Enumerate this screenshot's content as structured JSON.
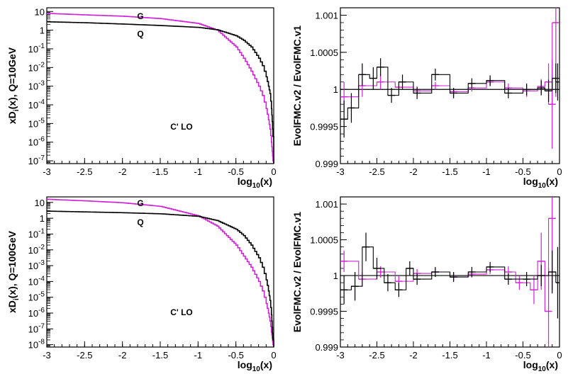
{
  "colors": {
    "series_g": "#d020d8",
    "series_q": "#000000",
    "axis": "#000000",
    "background": "#ffffff"
  },
  "chart_data": [
    {
      "id": "pdf-q10",
      "type": "line",
      "xlabel_main": "log",
      "xlabel_sub": "10",
      "xlabel_tail": "(x)",
      "ylabel_main": "xD",
      "ylabel_sub": "i",
      "ylabel_tail": "(x), Q=10GeV",
      "xlim": [
        -3,
        0
      ],
      "ylim_log10": [
        -7.15,
        1.2
      ],
      "yscale": "log",
      "x_ticks": [
        "-3",
        "-2.5",
        "-2",
        "-1.5",
        "-1",
        "-0.5",
        "0"
      ],
      "y_ticks": [
        "10",
        "1",
        "10-1",
        "10-2",
        "10-3",
        "10-4",
        "10-5",
        "10-6",
        "10-7"
      ],
      "annotation": "C' LO",
      "series_labels": [
        "G",
        "Q"
      ],
      "series": [
        {
          "name": "G",
          "color": "#d020d8",
          "x": [
            -3,
            -2.5,
            -2,
            -1.5,
            -1,
            -0.75,
            -0.5,
            -0.4,
            -0.3,
            -0.2,
            -0.15,
            -0.1,
            -0.07,
            -0.05,
            -0.03,
            -0.02,
            -0.01
          ],
          "log10y": [
            0.9,
            0.82,
            0.75,
            0.62,
            0.36,
            0.0,
            -0.9,
            -1.5,
            -2.2,
            -3.0,
            -3.5,
            -4.2,
            -4.8,
            -5.3,
            -6.0,
            -6.5,
            -7.0
          ]
        },
        {
          "name": "Q",
          "color": "#000000",
          "x": [
            -3,
            -2.5,
            -2,
            -1.5,
            -1,
            -0.75,
            -0.5,
            -0.4,
            -0.3,
            -0.2,
            -0.15,
            -0.1,
            -0.07,
            -0.05,
            -0.03,
            -0.02,
            -0.01
          ],
          "log10y": [
            0.45,
            0.4,
            0.33,
            0.25,
            0.15,
            0.02,
            -0.3,
            -0.55,
            -0.9,
            -1.5,
            -1.9,
            -2.5,
            -3.0,
            -3.4,
            -4.2,
            -4.9,
            -5.7
          ]
        }
      ]
    },
    {
      "id": "ratio-q10",
      "type": "line",
      "xlabel_main": "log",
      "xlabel_sub": "10",
      "xlabel_tail": "(x)",
      "ylabel": "EvolFMC.v2 / EvolFMC.v1",
      "xlim": [
        -3,
        0
      ],
      "ylim": [
        0.999,
        1.0011
      ],
      "x_ticks": [
        "-3",
        "-2.5",
        "-2",
        "-1.5",
        "-1",
        "-0.5",
        "0"
      ],
      "y_ticks": [
        {
          "value": 1.001,
          "label": "1.001"
        },
        {
          "value": 1.0005,
          "label": "1.0005"
        },
        {
          "value": 1.0,
          "label": "1"
        },
        {
          "value": 0.9995,
          "label": "0.9995"
        },
        {
          "value": 0.999,
          "label": "0.999"
        }
      ],
      "reference_line": 1.0,
      "series": [
        {
          "name": "G",
          "color": "#d020d8",
          "x": [
            -3,
            -2.75,
            -2.5,
            -2.25,
            -2,
            -1.75,
            -1.5,
            -1.25,
            -1,
            -0.75,
            -0.5,
            -0.3,
            -0.2,
            -0.15,
            -0.1
          ],
          "y": [
            0.9999,
            1.00005,
            1.0001,
            1.00003,
            0.99998,
            1.00005,
            0.99997,
            1.00002,
            1.0001,
            1.00002,
            0.99998,
            1.00004,
            1.0001,
            0.9998,
            1.0009
          ],
          "err": [
            0.0002,
            0.00015,
            0.0001,
            8e-05,
            6e-05,
            5e-05,
            5e-05,
            5e-05,
            6e-05,
            6e-05,
            8e-05,
            0.0001,
            0.00025,
            0.0006,
            0.001
          ]
        },
        {
          "name": "Q",
          "color": "#000000",
          "x": [
            -3,
            -2.9,
            -2.75,
            -2.6,
            -2.5,
            -2.35,
            -2.2,
            -2,
            -1.75,
            -1.5,
            -1.25,
            -1,
            -0.75,
            -0.5,
            -0.3,
            -0.2,
            -0.1,
            -0.05
          ],
          "y": [
            0.9996,
            0.99975,
            1.0002,
            1.00015,
            1.0003,
            0.99992,
            1.0001,
            0.99995,
            1.0002,
            0.99995,
            1.00008,
            1.00012,
            0.99995,
            1.0,
            1.00002,
            0.99998,
            1.00015,
            1.0001
          ],
          "err": [
            0.00025,
            0.0002,
            0.00015,
            0.00015,
            0.00012,
            0.0001,
            0.0001,
            8e-05,
            8e-05,
            7e-05,
            7e-05,
            7e-05,
            7e-05,
            8e-05,
            0.0001,
            0.00015,
            0.0002,
            0.00025
          ]
        }
      ]
    },
    {
      "id": "pdf-q100",
      "type": "line",
      "xlabel_main": "log",
      "xlabel_sub": "10",
      "xlabel_tail": "(x)",
      "ylabel_main": "xD",
      "ylabel_sub": "i",
      "ylabel_tail": "(x), Q=100GeV",
      "xlim": [
        -3,
        0
      ],
      "ylim_log10": [
        -8.15,
        1.35
      ],
      "yscale": "log",
      "x_ticks": [
        "-3",
        "-2.5",
        "-2",
        "-1.5",
        "-1",
        "-0.5",
        "0"
      ],
      "y_ticks": [
        "10",
        "1",
        "10-1",
        "10-2",
        "10-3",
        "10-4",
        "10-5",
        "10-6",
        "10-7",
        "10-8"
      ],
      "annotation": "C' LO",
      "series_labels": [
        "G",
        "Q"
      ],
      "series": [
        {
          "name": "G",
          "color": "#d020d8",
          "x": [
            -3,
            -2.5,
            -2,
            -1.5,
            -1,
            -0.75,
            -0.5,
            -0.4,
            -0.3,
            -0.2,
            -0.15,
            -0.1,
            -0.07,
            -0.05,
            -0.03,
            -0.02,
            -0.01
          ],
          "log10y": [
            1.2,
            1.1,
            0.98,
            0.75,
            0.15,
            -0.5,
            -1.7,
            -2.4,
            -3.1,
            -4.0,
            -4.6,
            -5.4,
            -6.0,
            -6.5,
            -7.2,
            -7.6,
            -8.0
          ]
        },
        {
          "name": "Q",
          "color": "#000000",
          "x": [
            -3,
            -2.5,
            -2,
            -1.5,
            -1,
            -0.75,
            -0.5,
            -0.4,
            -0.3,
            -0.2,
            -0.15,
            -0.1,
            -0.07,
            -0.05,
            -0.03,
            -0.02,
            -0.01
          ],
          "log10y": [
            0.45,
            0.4,
            0.35,
            0.28,
            0.12,
            -0.15,
            -0.7,
            -1.1,
            -1.7,
            -2.5,
            -3.1,
            -3.9,
            -4.6,
            -5.2,
            -6.1,
            -6.9,
            -7.7
          ]
        }
      ]
    },
    {
      "id": "ratio-q100",
      "type": "line",
      "xlabel_main": "log",
      "xlabel_sub": "10",
      "xlabel_tail": "(x)",
      "ylabel": "EvolFMC.v2 / EvolFMC.v1",
      "xlim": [
        -3,
        0
      ],
      "ylim": [
        0.999,
        1.0011
      ],
      "x_ticks": [
        "-3",
        "-2.5",
        "-2",
        "-1.5",
        "-1",
        "-0.5",
        "0"
      ],
      "y_ticks": [
        {
          "value": 1.001,
          "label": "1.001"
        },
        {
          "value": 1.0005,
          "label": "1.0005"
        },
        {
          "value": 1.0,
          "label": "1"
        },
        {
          "value": 0.9995,
          "label": "0.9995"
        },
        {
          "value": 0.999,
          "label": "0.999"
        }
      ],
      "reference_line": 1.0,
      "series": [
        {
          "name": "G",
          "color": "#d020d8",
          "x": [
            -3,
            -2.75,
            -2.5,
            -2.25,
            -2,
            -1.75,
            -1.5,
            -1.25,
            -1,
            -0.75,
            -0.6,
            -0.4,
            -0.3,
            -0.2,
            -0.15
          ],
          "y": [
            1.0002,
            0.99995,
            1.00005,
            0.99992,
            1.00003,
            1.00005,
            0.99998,
            1.00002,
            1.00008,
            1.00005,
            0.9999,
            0.9998,
            1.0002,
            0.9995,
            1.0008
          ],
          "err": [
            0.00015,
            0.0001,
            8e-05,
            7e-05,
            6e-05,
            5e-05,
            5e-05,
            5e-05,
            6e-05,
            8e-05,
            0.0001,
            0.0002,
            0.0004,
            0.0006,
            0.001
          ]
        },
        {
          "name": "Q",
          "color": "#000000",
          "x": [
            -3,
            -2.85,
            -2.7,
            -2.55,
            -2.4,
            -2.25,
            -2.1,
            -2,
            -1.75,
            -1.5,
            -1.25,
            -1,
            -0.75,
            -0.5,
            -0.3,
            -0.15,
            -0.05
          ],
          "y": [
            0.9998,
            0.99985,
            1.0004,
            1.0001,
            0.9999,
            0.9998,
            1.0001,
            0.99995,
            1.00005,
            0.99998,
            1.00005,
            1.00012,
            0.99995,
            0.99995,
            1.0,
            1.00005,
            0.9999
          ],
          "err": [
            0.0002,
            0.0002,
            0.0002,
            0.00015,
            0.00012,
            0.0001,
            0.0001,
            8e-05,
            7e-05,
            7e-05,
            7e-05,
            7e-05,
            8e-05,
            0.0001,
            0.00015,
            0.0003,
            0.0005
          ]
        }
      ]
    }
  ]
}
